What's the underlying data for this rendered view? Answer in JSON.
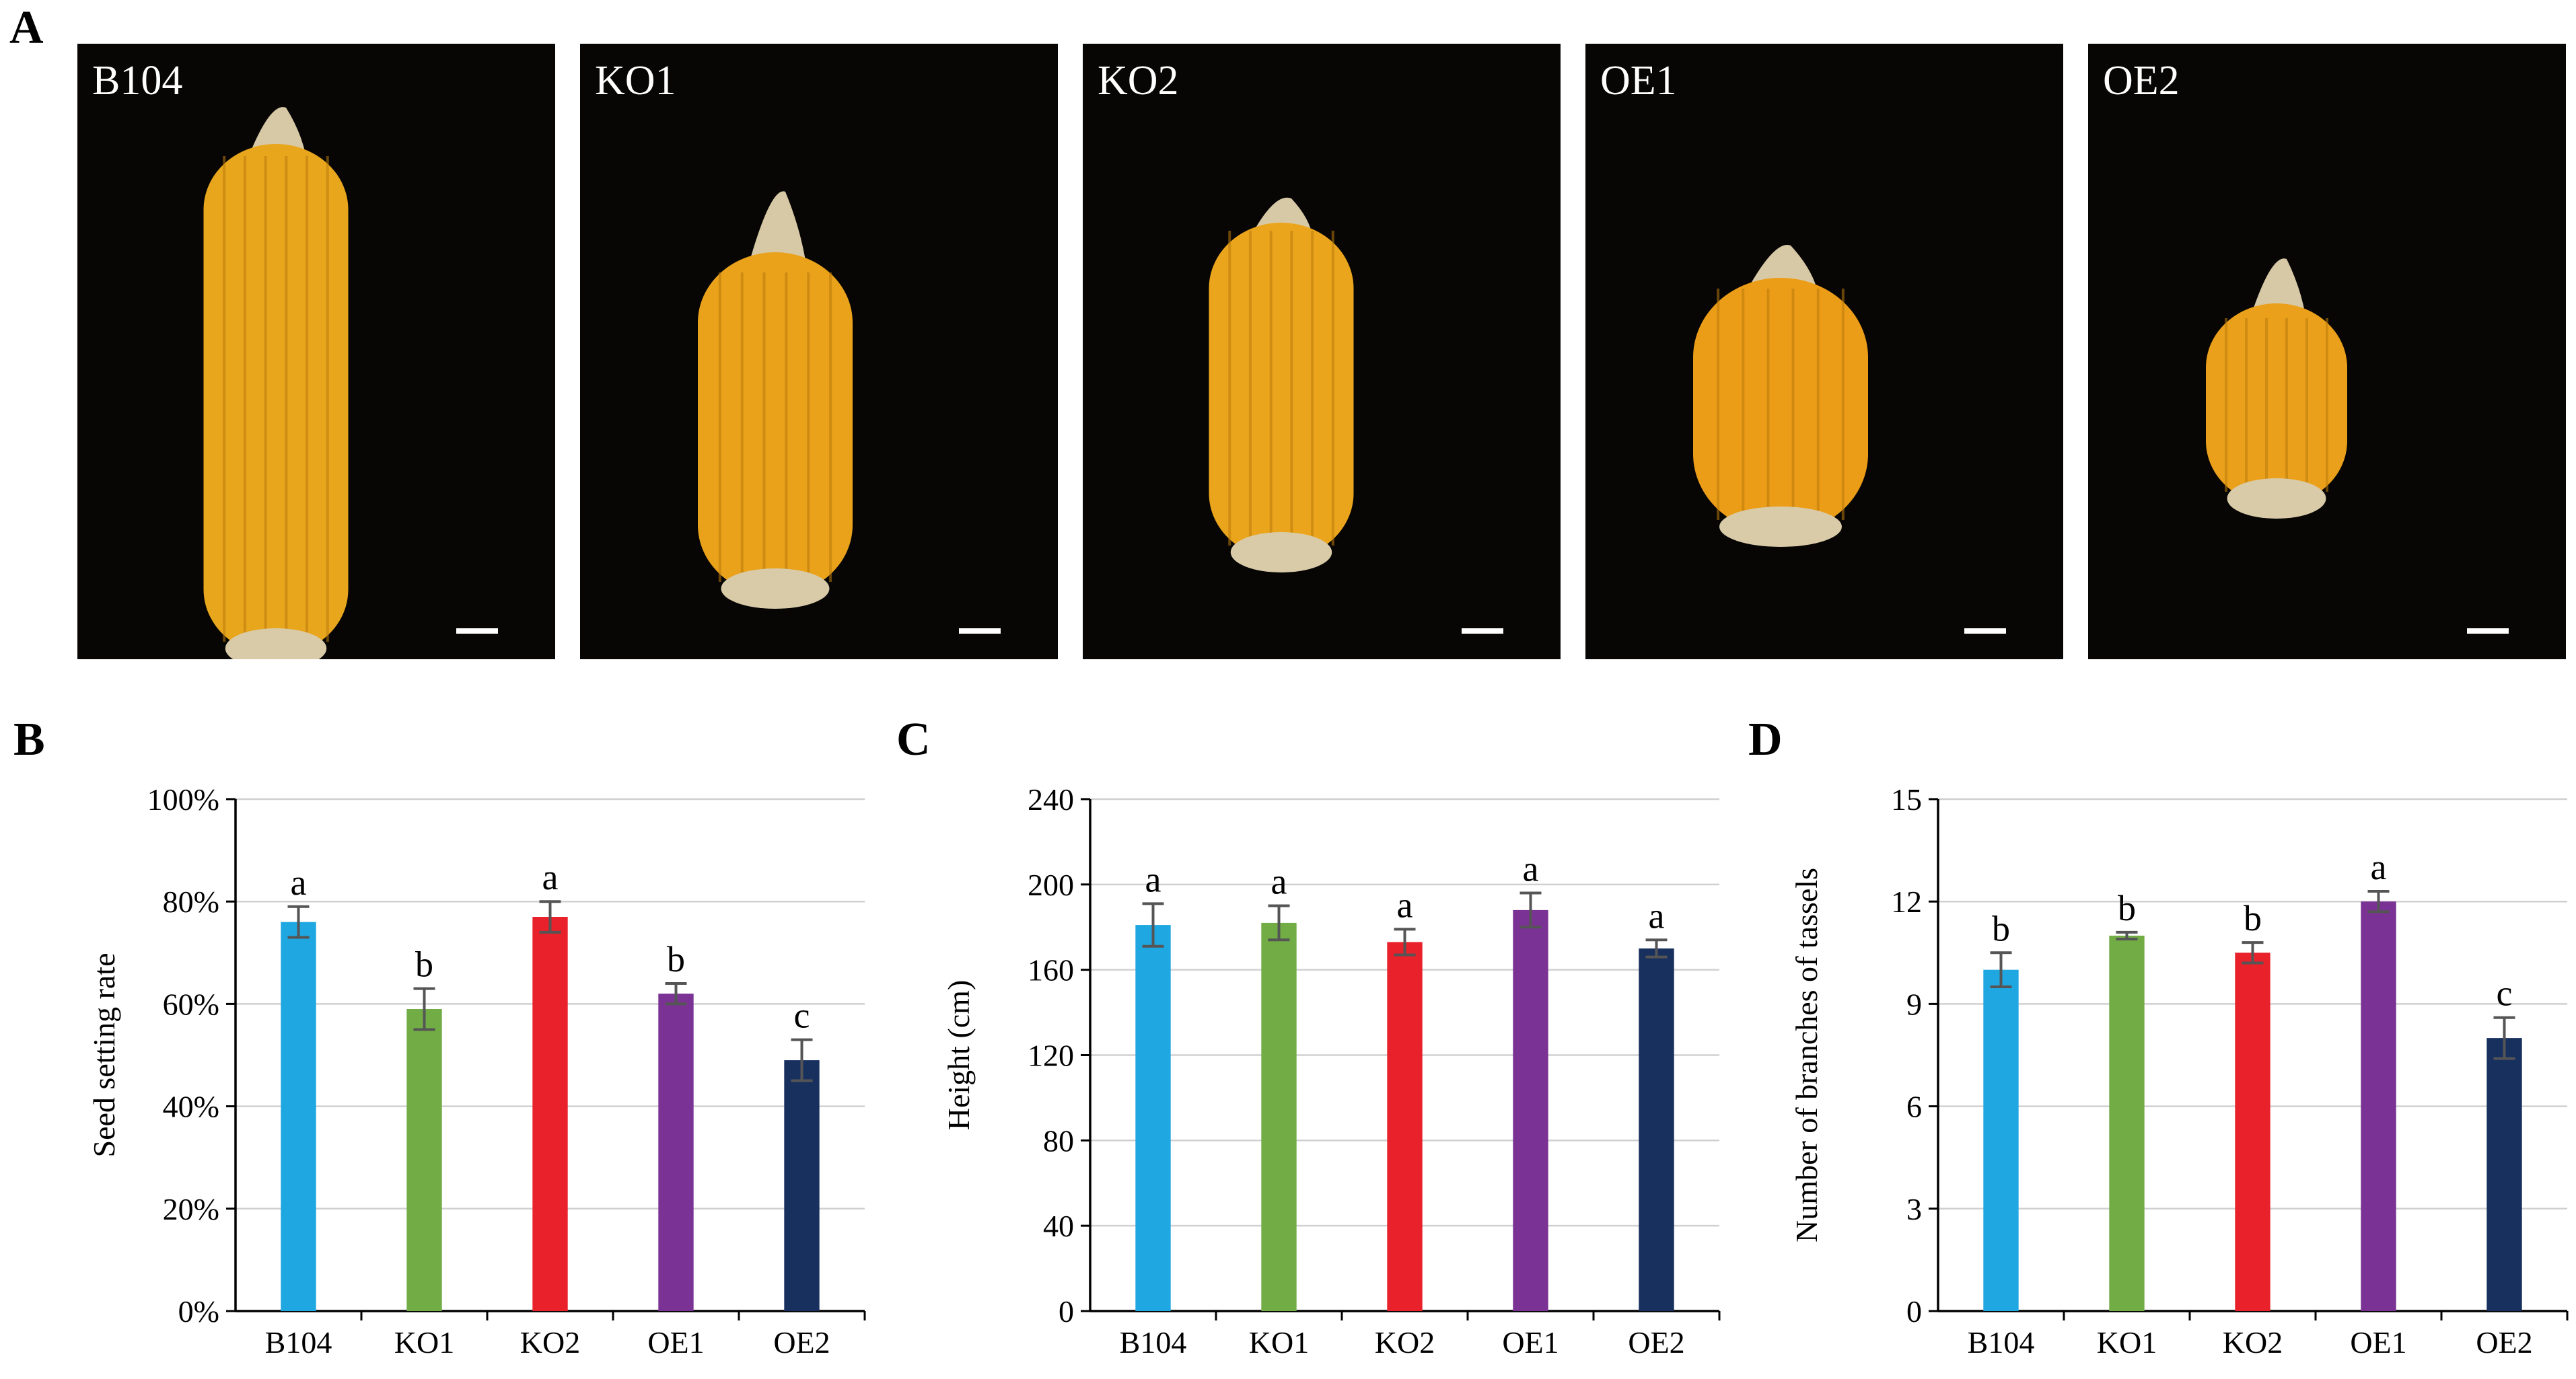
{
  "panel_letters": {
    "a": "A",
    "b": "B",
    "c": "C",
    "d": "D"
  },
  "photos": [
    {
      "label": "B104",
      "ear_color": "#e8a61c"
    },
    {
      "label": "KO1",
      "ear_color": "#e9a21a"
    },
    {
      "label": "KO2",
      "ear_color": "#eba51c"
    },
    {
      "label": "OE1",
      "ear_color": "#ec9d18"
    },
    {
      "label": "OE2",
      "ear_color": "#eaa01a"
    }
  ],
  "chart_data": [
    {
      "id": "B",
      "type": "bar",
      "categories": [
        "B104",
        "KO1",
        "KO2",
        "OE1",
        "OE2"
      ],
      "values": [
        76,
        59,
        77,
        62,
        49
      ],
      "errors": [
        3,
        4,
        3,
        2,
        4
      ],
      "significance": [
        "a",
        "b",
        "a",
        "b",
        "c"
      ],
      "colors": [
        "#1fa7e1",
        "#71ac45",
        "#e8212b",
        "#7a3294",
        "#17305e"
      ],
      "ylabel": "Seed setting rate",
      "ylim": [
        0,
        100
      ],
      "yticks": [
        0,
        20,
        40,
        60,
        80,
        100
      ],
      "ytick_labels": [
        "0%",
        "20%",
        "40%",
        "60%",
        "80%",
        "100%"
      ],
      "grid": true
    },
    {
      "id": "C",
      "type": "bar",
      "categories": [
        "B104",
        "KO1",
        "KO2",
        "OE1",
        "OE2"
      ],
      "values": [
        181,
        182,
        173,
        188,
        170
      ],
      "errors": [
        10,
        8,
        6,
        8,
        4
      ],
      "significance": [
        "a",
        "a",
        "a",
        "a",
        "a"
      ],
      "colors": [
        "#1fa7e1",
        "#71ac45",
        "#e8212b",
        "#7a3294",
        "#17305e"
      ],
      "ylabel": "Height (cm)",
      "ylim": [
        0,
        240
      ],
      "yticks": [
        0,
        40,
        80,
        120,
        160,
        200,
        240
      ],
      "ytick_labels": [
        "0",
        "40",
        "80",
        "120",
        "160",
        "200",
        "240"
      ],
      "grid": true
    },
    {
      "id": "D",
      "type": "bar",
      "categories": [
        "B104",
        "KO1",
        "KO2",
        "OE1",
        "OE2"
      ],
      "values": [
        10.0,
        11.0,
        10.5,
        12.0,
        8.0
      ],
      "errors": [
        0.5,
        0.1,
        0.3,
        0.3,
        0.6
      ],
      "significance": [
        "b",
        "b",
        "b",
        "a",
        "c"
      ],
      "colors": [
        "#1fa7e1",
        "#71ac45",
        "#e8212b",
        "#7a3294",
        "#17305e"
      ],
      "ylabel": "Number of branches of tassels",
      "ylim": [
        0,
        15
      ],
      "yticks": [
        0,
        3,
        6,
        9,
        12,
        15
      ],
      "ytick_labels": [
        "0",
        "3",
        "6",
        "9",
        "12",
        "15"
      ],
      "grid": true
    }
  ]
}
